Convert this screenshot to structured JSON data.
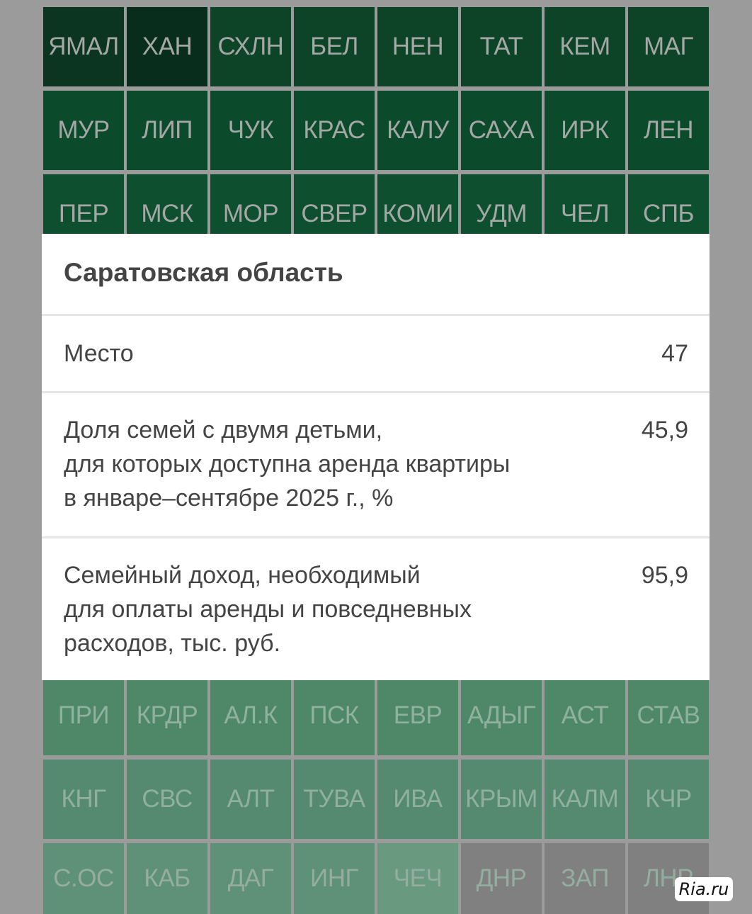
{
  "grid": {
    "rows": [
      {
        "cells": [
          {
            "label": "ЯМАЛ",
            "color": "#0b3421"
          },
          {
            "label": "ХАН",
            "color": "#092d1d"
          },
          {
            "label": "СХЛН",
            "color": "#0d4428"
          },
          {
            "label": "БЕЛ",
            "color": "#0d4428"
          },
          {
            "label": "НЕН",
            "color": "#0d4428"
          },
          {
            "label": "ТАТ",
            "color": "#0d4428"
          },
          {
            "label": "КЕМ",
            "color": "#0d4428"
          },
          {
            "label": "МАГ",
            "color": "#0d4428"
          }
        ],
        "text": "#a3a8a5"
      },
      {
        "cells": [
          {
            "label": "МУР",
            "color": "#0c4a2c"
          },
          {
            "label": "ЛИП",
            "color": "#0c4a2c"
          },
          {
            "label": "ЧУК",
            "color": "#0c4a2c"
          },
          {
            "label": "КРАС",
            "color": "#0c4a2c"
          },
          {
            "label": "КАЛУ",
            "color": "#0c4a2c"
          },
          {
            "label": "САХА",
            "color": "#0c4a2c"
          },
          {
            "label": "ИРК",
            "color": "#0c4a2c"
          },
          {
            "label": "ЛЕН",
            "color": "#0c4a2c"
          }
        ],
        "text": "#a3a8a5"
      },
      {
        "cells": [
          {
            "label": "ПЕР",
            "color": "#0e4f30"
          },
          {
            "label": "МСК",
            "color": "#0e4f30"
          },
          {
            "label": "МОР",
            "color": "#0e4f30"
          },
          {
            "label": "СВЕР",
            "color": "#0e4f30"
          },
          {
            "label": "КОМИ",
            "color": "#0e4f30"
          },
          {
            "label": "УДМ",
            "color": "#0e4f30"
          },
          {
            "label": "ЧЕЛ",
            "color": "#0e4f30"
          },
          {
            "label": "СПБ",
            "color": "#0e4f30"
          }
        ],
        "text": "#a3a8a5"
      },
      {
        "cells": [],
        "text": "#a3a8a5"
      },
      {
        "cells": [],
        "text": "#a3a8a5"
      },
      {
        "cells": [],
        "text": "#a3a8a5"
      },
      {
        "cells": [],
        "text": "#a3a8a5"
      },
      {
        "cells": [],
        "text": "#a3a8a5"
      },
      {
        "cells": [
          {
            "label": "ПРИ",
            "color": "#4e8868"
          },
          {
            "label": "КРДР",
            "color": "#4e8868"
          },
          {
            "label": "АЛ.К",
            "color": "#4e8868"
          },
          {
            "label": "ПСК",
            "color": "#4e8868"
          },
          {
            "label": "ЕВР",
            "color": "#4e8868"
          },
          {
            "label": "АДЫГ",
            "color": "#4e8868"
          },
          {
            "label": "АСТ",
            "color": "#4e8868"
          },
          {
            "label": "СТАВ",
            "color": "#4e8868"
          }
        ],
        "text": "#8fb29f"
      },
      {
        "cells": [
          {
            "label": "КНГ",
            "color": "#568a70"
          },
          {
            "label": "СВС",
            "color": "#568a70"
          },
          {
            "label": "АЛТ",
            "color": "#568a70"
          },
          {
            "label": "ТУВА",
            "color": "#568a70"
          },
          {
            "label": "ИВА",
            "color": "#568a70"
          },
          {
            "label": "КРЫМ",
            "color": "#568a70"
          },
          {
            "label": "КАЛМ",
            "color": "#568a70"
          },
          {
            "label": "КЧР",
            "color": "#568a70"
          }
        ],
        "text": "#8fb09f"
      },
      {
        "cells": [
          {
            "label": "С.ОС",
            "color": "#5e9177"
          },
          {
            "label": "КАБ",
            "color": "#5e9177"
          },
          {
            "label": "ДАГ",
            "color": "#5e9177"
          },
          {
            "label": "ИНГ",
            "color": "#5e9177"
          },
          {
            "label": "ЧЕЧ",
            "color": "#69997f"
          },
          {
            "label": "ДНР",
            "color": "#808080"
          },
          {
            "label": "ЗАП",
            "color": "#808080"
          },
          {
            "label": "ЛНР",
            "color": "#808080"
          }
        ],
        "text": "#93ad9f"
      }
    ]
  },
  "popup": {
    "title": "Саратовская область",
    "rows": [
      {
        "label": "Место",
        "value": "47"
      },
      {
        "label": "Доля семей с двумя детьми,\nдля которых доступна аренда квартиры\nв январе–сентябре 2025 г., %",
        "value": "45,9"
      },
      {
        "label": "Семейный доход, необходимый\nдля оплаты аренды и повседневных\nрасходов, тыс. руб.",
        "value": "95,9"
      }
    ]
  },
  "watermark": "Ria.ru"
}
